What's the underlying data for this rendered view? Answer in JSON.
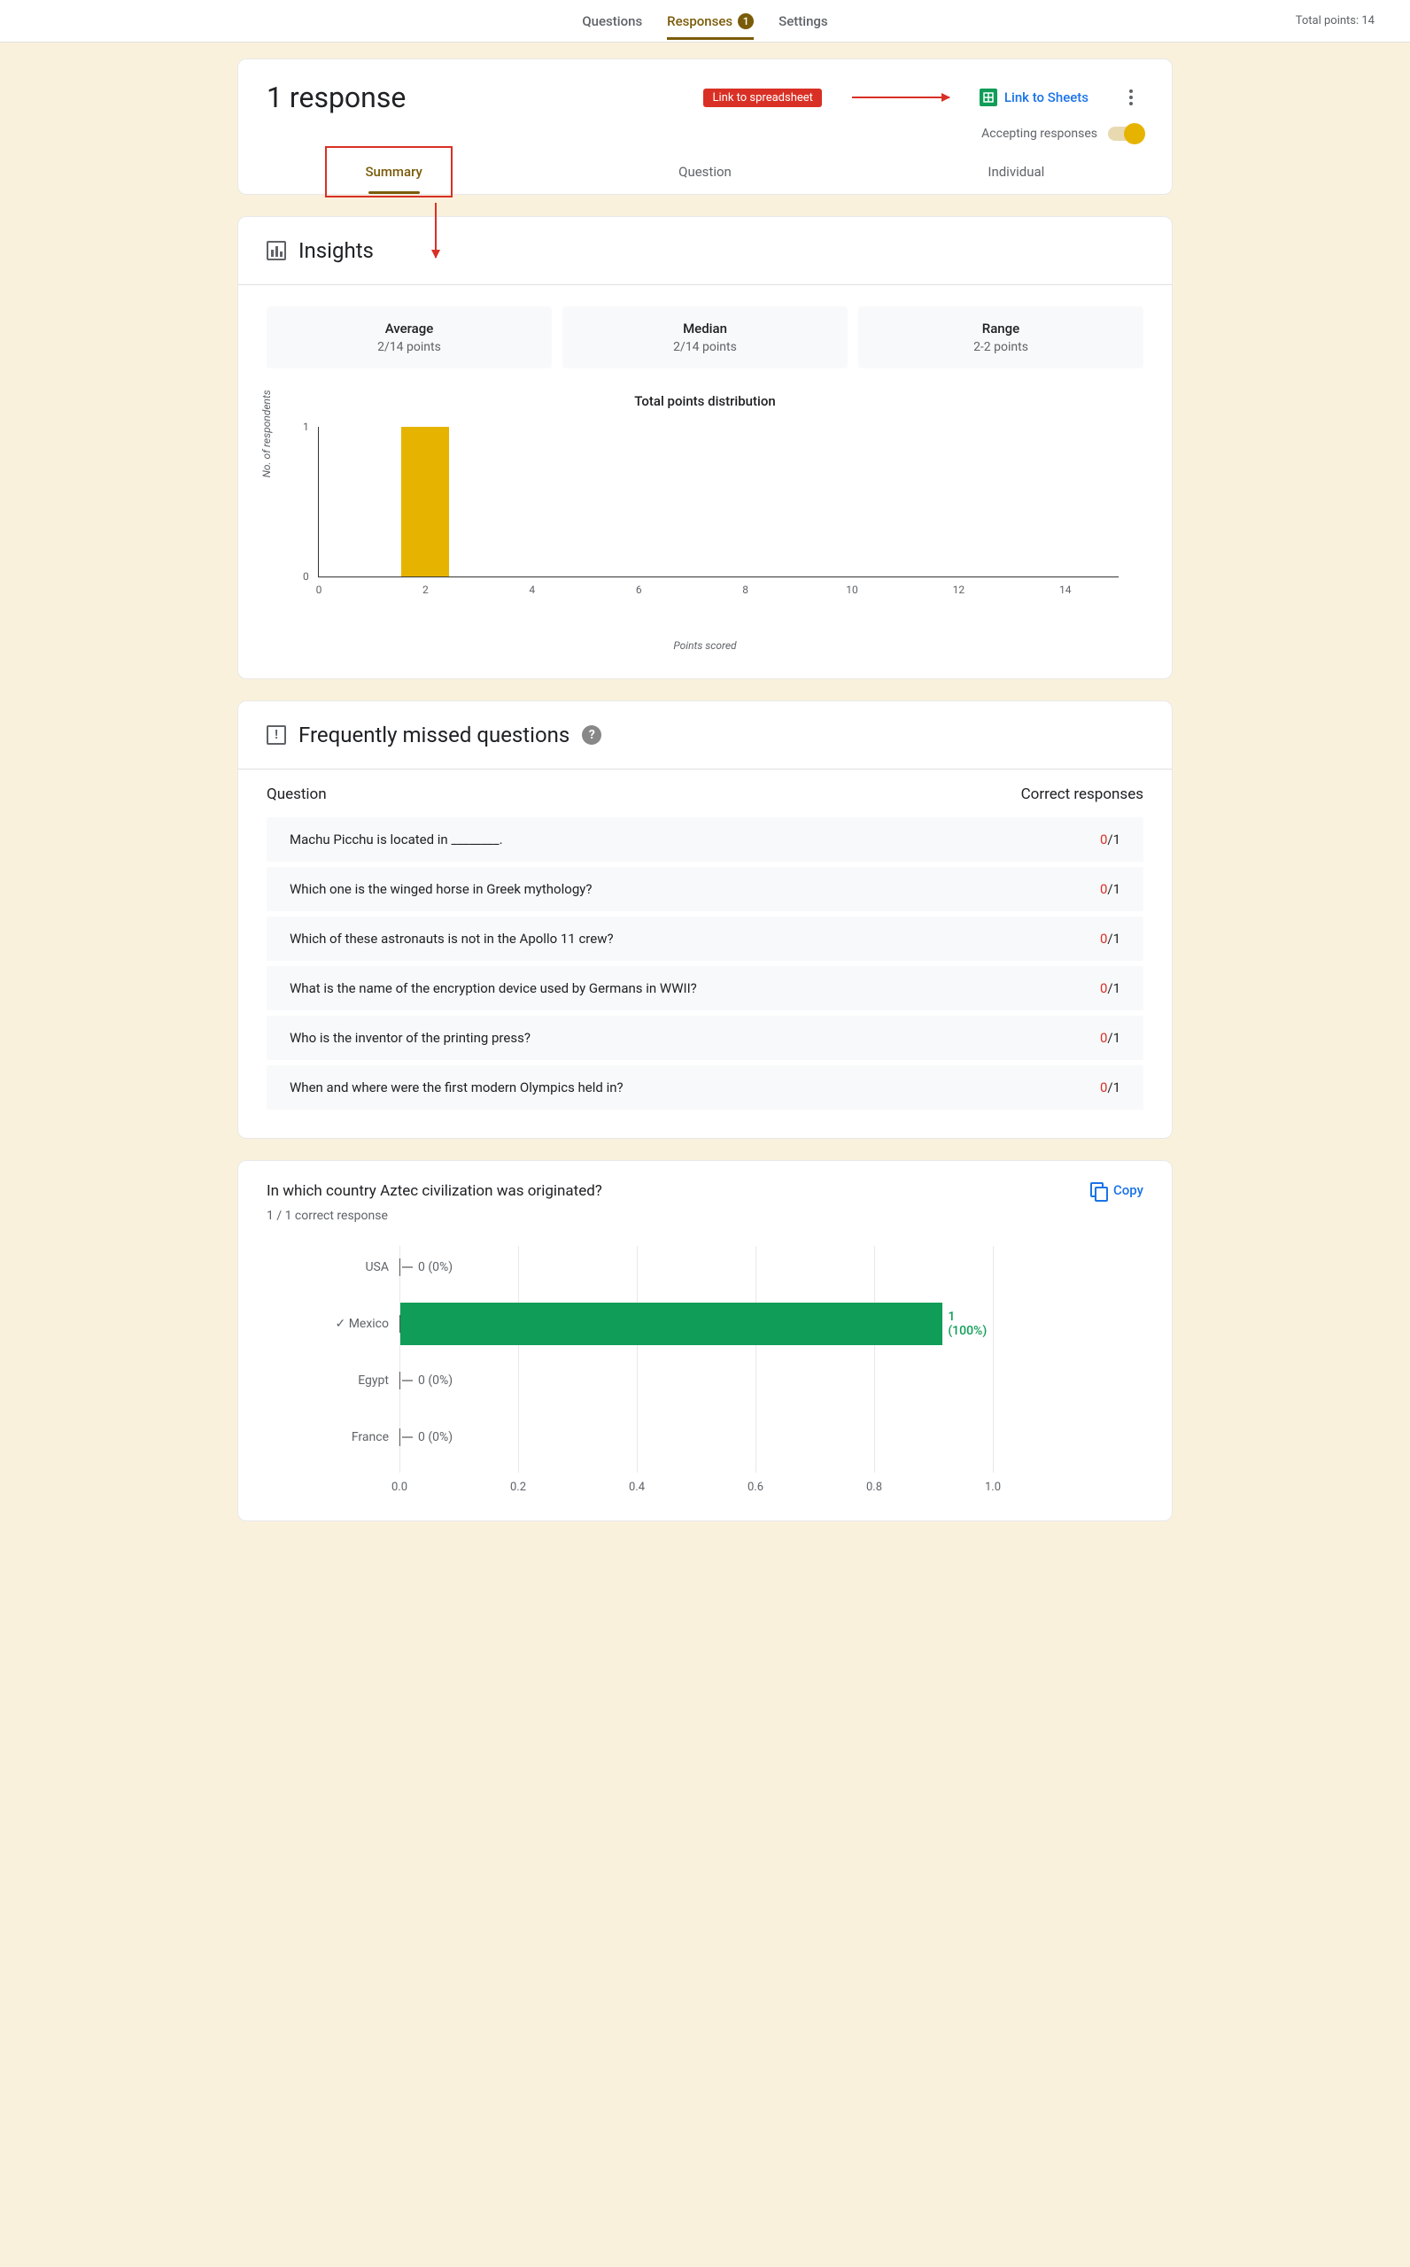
{
  "top": {
    "tabs": {
      "questions": "Questions",
      "responses": "Responses",
      "settings": "Settings"
    },
    "responses_badge": "1",
    "total_points": "Total points: 14"
  },
  "responses_card": {
    "title": "1 response",
    "annotation_label": "Link to spreadsheet",
    "sheets_link": "Link to Sheets",
    "accepting_label": "Accepting responses",
    "sub_tabs": {
      "summary": "Summary",
      "question": "Question",
      "individual": "Individual"
    }
  },
  "insights": {
    "title": "Insights",
    "stats": [
      {
        "label": "Average",
        "val": "2/14 points"
      },
      {
        "label": "Median",
        "val": "2/14 points"
      },
      {
        "label": "Range",
        "val": "2-2 points"
      }
    ],
    "chart": {
      "title": "Total points distribution",
      "y_label": "No. of respondents",
      "x_label": "Points scored",
      "type": "bar",
      "x_ticks": [
        0,
        2,
        4,
        6,
        8,
        10,
        12,
        14
      ],
      "x_max": 15,
      "y_ticks": [
        0,
        1
      ],
      "y_max": 1,
      "bars": [
        {
          "x": 2,
          "height": 1
        }
      ],
      "bar_color": "#e6b400",
      "bar_width_units": 0.9
    }
  },
  "missed": {
    "title": "Frequently missed questions",
    "col1": "Question",
    "col2": "Correct responses",
    "rows": [
      {
        "q": "Machu Picchu is located in ________.",
        "wrong": "0",
        "total": "/1"
      },
      {
        "q": "Which one is the winged horse in Greek mythology?",
        "wrong": "0",
        "total": "/1"
      },
      {
        "q": "Which of these astronauts is not in the Apollo 11 crew?",
        "wrong": "0",
        "total": "/1"
      },
      {
        "q": "What is the name of the encryption device used by Germans in WWII?",
        "wrong": "0",
        "total": "/1"
      },
      {
        "q": "Who is the inventor of the printing press?",
        "wrong": "0",
        "total": "/1"
      },
      {
        "q": "When and where were the first modern Olympics held in?",
        "wrong": "0",
        "total": "/1"
      }
    ]
  },
  "question_detail": {
    "title": "In which country Aztec civilization was originated?",
    "sub": "1 / 1 correct response",
    "copy": "Copy",
    "chart": {
      "type": "hbar",
      "x_ticks": [
        "0.0",
        "0.2",
        "0.4",
        "0.6",
        "0.8",
        "1.0"
      ],
      "x_max": 1.0,
      "correct_color": "#0f9d58",
      "options": [
        {
          "label": "USA",
          "value": 0,
          "display": "0 (0%)",
          "correct": false
        },
        {
          "label": "Mexico",
          "value": 1,
          "display": "1 (100%)",
          "correct": true
        },
        {
          "label": "Egypt",
          "value": 0,
          "display": "0 (0%)",
          "correct": false
        },
        {
          "label": "France",
          "value": 0,
          "display": "0 (0%)",
          "correct": false
        }
      ]
    }
  }
}
